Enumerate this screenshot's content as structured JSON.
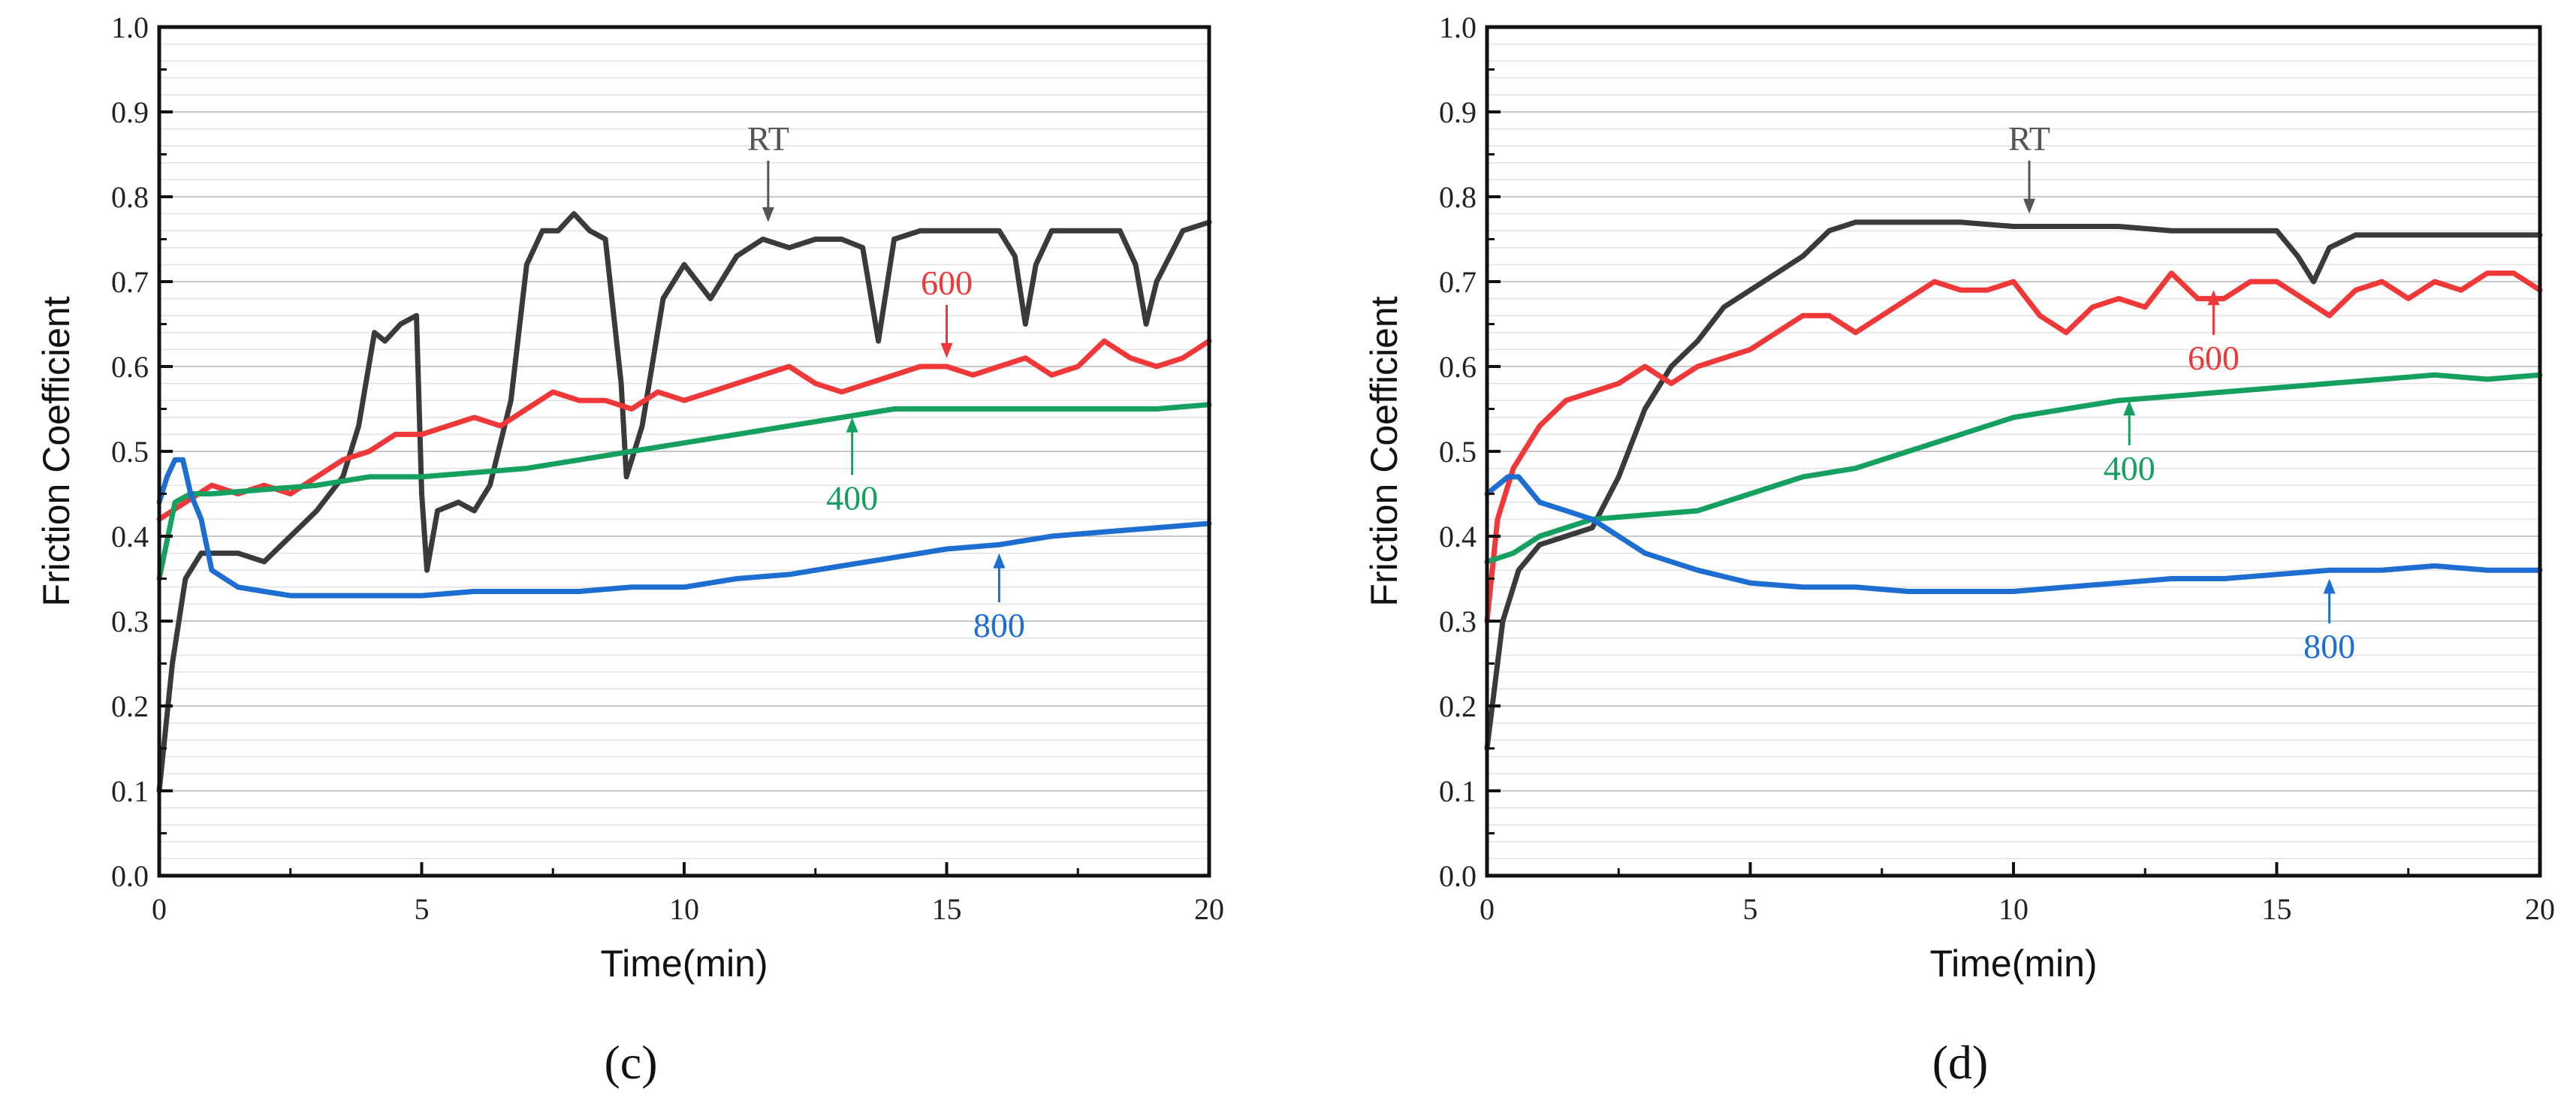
{
  "chart_data": [
    {
      "type": "line",
      "panel_label": "(c)",
      "xlabel": "Time(min)",
      "ylabel": "Friction Coefficient",
      "xlim": [
        0,
        20
      ],
      "ylim": [
        0,
        1.0
      ],
      "x_ticks": [
        "0",
        "5",
        "10",
        "15",
        "20"
      ],
      "y_ticks": [
        "0.0",
        "0.1",
        "0.2",
        "0.3",
        "0.4",
        "0.5",
        "0.6",
        "0.7",
        "0.8",
        "0.9",
        "1.0"
      ],
      "series": [
        {
          "name": "RT",
          "color": "#3a3a3a",
          "x": [
            0,
            0.25,
            0.5,
            0.8,
            1.5,
            2.0,
            2.5,
            3.0,
            3.5,
            3.8,
            4.1,
            4.3,
            4.6,
            4.9,
            5.0,
            5.1,
            5.3,
            5.7,
            6.0,
            6.3,
            6.7,
            7.0,
            7.3,
            7.6,
            7.9,
            8.2,
            8.5,
            8.8,
            8.9,
            9.2,
            9.6,
            10.0,
            10.5,
            11.0,
            11.5,
            12.0,
            12.5,
            13.0,
            13.4,
            13.7,
            14.0,
            14.5,
            15.0,
            15.5,
            16.0,
            16.3,
            16.5,
            16.7,
            17.0,
            17.5,
            18.0,
            18.3,
            18.6,
            18.8,
            19.0,
            19.5,
            20.0
          ],
          "y": [
            0.1,
            0.25,
            0.35,
            0.38,
            0.38,
            0.37,
            0.4,
            0.43,
            0.47,
            0.53,
            0.64,
            0.63,
            0.65,
            0.66,
            0.45,
            0.36,
            0.43,
            0.44,
            0.43,
            0.46,
            0.56,
            0.72,
            0.76,
            0.76,
            0.78,
            0.76,
            0.75,
            0.58,
            0.47,
            0.53,
            0.68,
            0.72,
            0.68,
            0.73,
            0.75,
            0.74,
            0.75,
            0.75,
            0.74,
            0.63,
            0.75,
            0.76,
            0.76,
            0.76,
            0.76,
            0.73,
            0.65,
            0.72,
            0.76,
            0.76,
            0.76,
            0.76,
            0.72,
            0.65,
            0.7,
            0.76,
            0.77
          ]
        },
        {
          "name": "600",
          "color": "#f03838",
          "x": [
            0,
            0.5,
            1.0,
            1.5,
            2.0,
            2.5,
            3.0,
            3.5,
            4.0,
            4.5,
            5.0,
            5.5,
            6.0,
            6.5,
            7.0,
            7.5,
            8.0,
            8.5,
            9.0,
            9.5,
            10.0,
            10.5,
            11.0,
            11.5,
            12.0,
            12.5,
            13.0,
            13.5,
            14.0,
            14.5,
            15.0,
            15.5,
            16.0,
            16.5,
            17.0,
            17.5,
            18.0,
            18.5,
            19.0,
            19.5,
            20.0
          ],
          "y": [
            0.42,
            0.44,
            0.46,
            0.45,
            0.46,
            0.45,
            0.47,
            0.49,
            0.5,
            0.52,
            0.52,
            0.53,
            0.54,
            0.53,
            0.55,
            0.57,
            0.56,
            0.56,
            0.55,
            0.57,
            0.56,
            0.57,
            0.58,
            0.59,
            0.6,
            0.58,
            0.57,
            0.58,
            0.59,
            0.6,
            0.6,
            0.59,
            0.6,
            0.61,
            0.59,
            0.6,
            0.63,
            0.61,
            0.6,
            0.61,
            0.63
          ]
        },
        {
          "name": "400",
          "color": "#16a060",
          "x": [
            0,
            0.3,
            0.6,
            1.0,
            2.0,
            3.0,
            4.0,
            5.0,
            6.0,
            7.0,
            8.0,
            9.0,
            10.0,
            11.0,
            12.0,
            13.0,
            14.0,
            15.0,
            16.0,
            17.0,
            18.0,
            19.0,
            20.0
          ],
          "y": [
            0.35,
            0.44,
            0.45,
            0.45,
            0.455,
            0.46,
            0.47,
            0.47,
            0.475,
            0.48,
            0.49,
            0.5,
            0.51,
            0.52,
            0.53,
            0.54,
            0.55,
            0.55,
            0.55,
            0.55,
            0.55,
            0.55,
            0.555
          ]
        },
        {
          "name": "800",
          "color": "#1e6ed2",
          "x": [
            0,
            0.15,
            0.3,
            0.45,
            0.6,
            0.8,
            1.0,
            1.5,
            2.0,
            2.5,
            3.0,
            4.0,
            5.0,
            6.0,
            7.0,
            8.0,
            9.0,
            10.0,
            11.0,
            12.0,
            13.0,
            14.0,
            15.0,
            16.0,
            17.0,
            18.0,
            19.0,
            20.0
          ],
          "y": [
            0.44,
            0.47,
            0.49,
            0.49,
            0.45,
            0.42,
            0.36,
            0.34,
            0.335,
            0.33,
            0.33,
            0.33,
            0.33,
            0.335,
            0.335,
            0.335,
            0.34,
            0.34,
            0.35,
            0.355,
            0.365,
            0.375,
            0.385,
            0.39,
            0.4,
            0.405,
            0.41,
            0.415
          ]
        }
      ],
      "annotations": [
        {
          "text": "RT",
          "color": "#555555",
          "at": [
            11.6,
            0.77
          ],
          "label_pos": [
            11.6,
            0.855
          ]
        },
        {
          "text": "600",
          "color": "#f03838",
          "at": [
            15.0,
            0.61
          ],
          "label_pos": [
            15.0,
            0.685
          ]
        },
        {
          "text": "400",
          "color": "#16a060",
          "at": [
            13.2,
            0.54
          ],
          "label_pos": [
            13.2,
            0.435
          ]
        },
        {
          "text": "800",
          "color": "#1e6ed2",
          "at": [
            16.0,
            0.38
          ],
          "label_pos": [
            16.0,
            0.285
          ]
        }
      ]
    },
    {
      "type": "line",
      "panel_label": "(d)",
      "xlabel": "Time(min)",
      "ylabel": "Friction Coefficient",
      "xlim": [
        0,
        20
      ],
      "ylim": [
        0,
        1.0
      ],
      "x_ticks": [
        "0",
        "5",
        "10",
        "15",
        "20"
      ],
      "y_ticks": [
        "0.0",
        "0.1",
        "0.2",
        "0.3",
        "0.4",
        "0.5",
        "0.6",
        "0.7",
        "0.8",
        "0.9",
        "1.0"
      ],
      "series": [
        {
          "name": "RT",
          "color": "#3a3a3a",
          "x": [
            0,
            0.3,
            0.6,
            1.0,
            1.5,
            2.0,
            2.5,
            3.0,
            3.5,
            4.0,
            4.5,
            5.0,
            5.5,
            6.0,
            6.5,
            7.0,
            8.0,
            9.0,
            10.0,
            11.0,
            12.0,
            13.0,
            14.0,
            15.0,
            15.4,
            15.7,
            16.0,
            16.5,
            17.0,
            18.0,
            19.0,
            20.0
          ],
          "y": [
            0.15,
            0.3,
            0.36,
            0.39,
            0.4,
            0.41,
            0.47,
            0.55,
            0.6,
            0.63,
            0.67,
            0.69,
            0.71,
            0.73,
            0.76,
            0.77,
            0.77,
            0.77,
            0.765,
            0.765,
            0.765,
            0.76,
            0.76,
            0.76,
            0.73,
            0.7,
            0.74,
            0.755,
            0.755,
            0.755,
            0.755,
            0.755
          ]
        },
        {
          "name": "600",
          "color": "#f03838",
          "x": [
            0,
            0.2,
            0.5,
            1.0,
            1.5,
            2.0,
            2.5,
            3.0,
            3.5,
            4.0,
            4.5,
            5.0,
            5.5,
            6.0,
            6.5,
            7.0,
            7.5,
            8.0,
            8.5,
            9.0,
            9.5,
            10.0,
            10.5,
            11.0,
            11.5,
            12.0,
            12.5,
            13.0,
            13.5,
            14.0,
            14.5,
            15.0,
            15.5,
            16.0,
            16.5,
            17.0,
            17.5,
            18.0,
            18.5,
            19.0,
            19.5,
            20.0
          ],
          "y": [
            0.3,
            0.42,
            0.48,
            0.53,
            0.56,
            0.57,
            0.58,
            0.6,
            0.58,
            0.6,
            0.61,
            0.62,
            0.64,
            0.66,
            0.66,
            0.64,
            0.66,
            0.68,
            0.7,
            0.69,
            0.69,
            0.7,
            0.66,
            0.64,
            0.67,
            0.68,
            0.67,
            0.71,
            0.68,
            0.68,
            0.7,
            0.7,
            0.68,
            0.66,
            0.69,
            0.7,
            0.68,
            0.7,
            0.69,
            0.71,
            0.71,
            0.69
          ]
        },
        {
          "name": "400",
          "color": "#16a060",
          "x": [
            0,
            0.5,
            1.0,
            2.0,
            3.0,
            4.0,
            5.0,
            6.0,
            7.0,
            8.0,
            9.0,
            10.0,
            11.0,
            12.0,
            13.0,
            14.0,
            15.0,
            16.0,
            17.0,
            18.0,
            19.0,
            20.0
          ],
          "y": [
            0.37,
            0.38,
            0.4,
            0.42,
            0.425,
            0.43,
            0.45,
            0.47,
            0.48,
            0.5,
            0.52,
            0.54,
            0.55,
            0.56,
            0.565,
            0.57,
            0.575,
            0.58,
            0.585,
            0.59,
            0.585,
            0.59
          ]
        },
        {
          "name": "800",
          "color": "#1e6ed2",
          "x": [
            0,
            0.2,
            0.4,
            0.6,
            0.8,
            1.0,
            1.5,
            2.0,
            2.5,
            3.0,
            3.5,
            4.0,
            5.0,
            6.0,
            7.0,
            8.0,
            9.0,
            10.0,
            11.0,
            12.0,
            13.0,
            14.0,
            15.0,
            16.0,
            17.0,
            18.0,
            19.0,
            20.0
          ],
          "y": [
            0.45,
            0.46,
            0.47,
            0.47,
            0.455,
            0.44,
            0.43,
            0.42,
            0.4,
            0.38,
            0.37,
            0.36,
            0.345,
            0.34,
            0.34,
            0.335,
            0.335,
            0.335,
            0.34,
            0.345,
            0.35,
            0.35,
            0.355,
            0.36,
            0.36,
            0.365,
            0.36,
            0.36
          ]
        }
      ],
      "annotations": [
        {
          "text": "RT",
          "color": "#555555",
          "at": [
            10.3,
            0.78
          ],
          "label_pos": [
            10.3,
            0.855
          ]
        },
        {
          "text": "600",
          "color": "#f03838",
          "at": [
            13.8,
            0.69
          ],
          "label_pos": [
            13.8,
            0.6
          ]
        },
        {
          "text": "400",
          "color": "#16a060",
          "at": [
            12.2,
            0.56
          ],
          "label_pos": [
            12.2,
            0.47
          ]
        },
        {
          "text": "800",
          "color": "#1e6ed2",
          "at": [
            16.0,
            0.35
          ],
          "label_pos": [
            16.0,
            0.26
          ]
        }
      ]
    }
  ]
}
